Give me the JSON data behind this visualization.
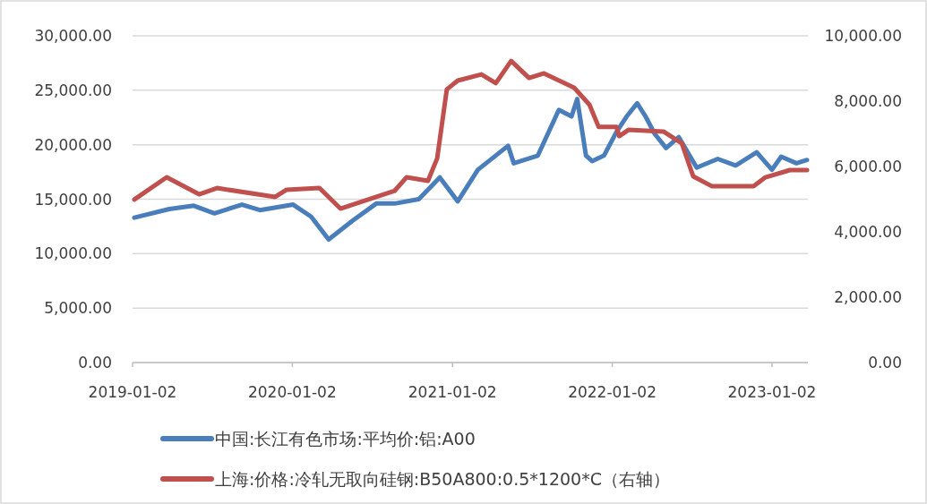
{
  "chart_data": {
    "type": "line",
    "xlim": [
      "2019-01-02",
      "2023-03-25"
    ],
    "xticks": [
      "2019-01-02",
      "2020-01-02",
      "2021-01-02",
      "2022-01-02",
      "2023-01-02"
    ],
    "ylim": [
      0,
      30000
    ],
    "yticks": [
      {
        "value": 0,
        "label": "0.00"
      },
      {
        "value": 5000,
        "label": "5,000.00"
      },
      {
        "value": 10000,
        "label": "10,000.00"
      },
      {
        "value": 15000,
        "label": "15,000.00"
      },
      {
        "value": 20000,
        "label": "20,000.00"
      },
      {
        "value": 25000,
        "label": "25,000.00"
      },
      {
        "value": 30000,
        "label": "30,000.00"
      }
    ],
    "y2lim": [
      0,
      10000
    ],
    "y2ticks": [
      {
        "value": 0,
        "label": "0.00"
      },
      {
        "value": 2000,
        "label": "2,000.00"
      },
      {
        "value": 4000,
        "label": "4,000.00"
      },
      {
        "value": 6000,
        "label": "6,000.00"
      },
      {
        "value": 8000,
        "label": "8,000.00"
      },
      {
        "value": 10000,
        "label": "10,000.00"
      }
    ],
    "grid": "y",
    "legend": "bottom",
    "series": [
      {
        "name": "中国:长江有色市场:平均价:铝:A00",
        "color": "#4a7ebb",
        "x": [
          "2019-01-06",
          "2019-03-27",
          "2019-05-22",
          "2019-07-08",
          "2019-09-09",
          "2019-10-20",
          "2020-01-04",
          "2020-02-14",
          "2020-03-25",
          "2020-05-18",
          "2020-07-12",
          "2020-08-23",
          "2020-10-17",
          "2020-12-04",
          "2021-01-14",
          "2021-03-01",
          "2021-05-09",
          "2021-05-22",
          "2021-07-16",
          "2021-09-02",
          "2021-10-01",
          "2021-10-14",
          "2021-11-03",
          "2021-11-17",
          "2021-12-14",
          "2022-01-12",
          "2022-02-04",
          "2022-02-28",
          "2022-03-19",
          "2022-04-09",
          "2022-05-05",
          "2022-06-03",
          "2022-07-14",
          "2022-08-31",
          "2022-10-11",
          "2022-11-28",
          "2023-01-02",
          "2023-01-23",
          "2023-02-27",
          "2023-03-23"
        ],
        "values": [
          13300,
          14100,
          14400,
          13700,
          14500,
          14000,
          14500,
          13400,
          11300,
          13000,
          14600,
          14600,
          15000,
          17000,
          14800,
          17700,
          19900,
          18300,
          19000,
          23200,
          22600,
          24200,
          19000,
          18500,
          19000,
          21200,
          22600,
          23800,
          22600,
          21000,
          19700,
          20700,
          17900,
          18700,
          18100,
          19300,
          17700,
          18900,
          18300,
          18600
        ]
      },
      {
        "name": "上海:价格:冷轧无取向硅钢:B50A800:0.5*1200*C（右轴）",
        "color": "#c0504d",
        "axis": "y2",
        "x": [
          "2019-01-06",
          "2019-03-21",
          "2019-06-03",
          "2019-07-14",
          "2019-11-24",
          "2019-12-20",
          "2020-03-04",
          "2020-04-21",
          "2020-06-28",
          "2020-08-23",
          "2020-09-19",
          "2020-11-07",
          "2020-11-28",
          "2020-12-20",
          "2021-01-14",
          "2021-03-09",
          "2021-04-11",
          "2021-05-16",
          "2021-06-26",
          "2021-07-30",
          "2021-10-07",
          "2021-11-11",
          "2021-12-02",
          "2022-01-12",
          "2022-01-18",
          "2022-02-08",
          "2022-04-29",
          "2022-06-10",
          "2022-07-06",
          "2022-08-17",
          "2022-11-21",
          "2022-12-18",
          "2023-02-12",
          "2023-03-23"
        ],
        "values": [
          4990,
          5670,
          5150,
          5340,
          5070,
          5290,
          5340,
          4710,
          5010,
          5260,
          5670,
          5560,
          6250,
          8360,
          8630,
          8820,
          8550,
          9230,
          8710,
          8850,
          8410,
          7890,
          7210,
          7210,
          6930,
          7120,
          7070,
          6710,
          5700,
          5400,
          5400,
          5670,
          5890,
          5890
        ]
      }
    ]
  }
}
